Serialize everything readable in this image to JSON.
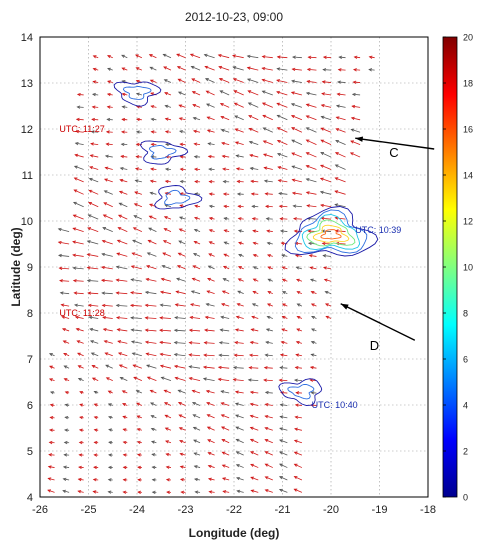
{
  "chart_data": {
    "type": "vector-field",
    "title": "2012-10-23, 09:00",
    "xlabel": "Longitude (deg)",
    "ylabel": "Latitude (deg)",
    "xlim": [
      -26,
      -18
    ],
    "ylim": [
      4,
      14
    ],
    "x_ticks": [
      "-26",
      "-25",
      "-24",
      "-23",
      "-22",
      "-21",
      "-20",
      "-19",
      "-18"
    ],
    "y_ticks": [
      "4",
      "5",
      "6",
      "7",
      "8",
      "9",
      "10",
      "11",
      "12",
      "13",
      "14"
    ],
    "grid": true,
    "colorbar": {
      "range": [
        0,
        20
      ],
      "ticks": [
        "0",
        "2",
        "4",
        "6",
        "8",
        "10",
        "12",
        "14",
        "16",
        "18",
        "20"
      ],
      "colormap": "jet"
    },
    "swath_corners": [
      [
        -25.0,
        13.8
      ],
      [
        -19.0,
        13.7
      ],
      [
        -20.6,
        4.0
      ],
      [
        -26.0,
        4.3
      ]
    ],
    "annotations": [
      {
        "text": "UTC: 11:27",
        "lon": -25.6,
        "lat": 12.0,
        "color": "#cc0000"
      },
      {
        "text": "UTC: 11:28",
        "lon": -25.6,
        "lat": 8.0,
        "color": "#cc0000"
      },
      {
        "text": "UTC: 10:39",
        "lon": -19.5,
        "lat": 9.8,
        "color": "#1a2fb0"
      },
      {
        "text": "UTC: 10:40",
        "lon": -20.4,
        "lat": 6.0,
        "color": "#1a2fb0"
      }
    ],
    "arrow_labels": [
      {
        "text": "C",
        "lon": -18.8,
        "lat": 11.5,
        "tip_lon": -19.5,
        "tip_lat": 11.8
      },
      {
        "text": "D",
        "lon": -19.2,
        "lat": 7.3,
        "tip_lon": -19.8,
        "tip_lat": 8.2
      }
    ],
    "precip_clusters": [
      {
        "lon": -20.0,
        "lat": 9.7,
        "peak": 16
      },
      {
        "lon": -23.2,
        "lat": 10.5,
        "peak": 3
      },
      {
        "lon": -23.5,
        "lat": 11.5,
        "peak": 4
      },
      {
        "lon": -24.0,
        "lat": 12.8,
        "peak": 3
      },
      {
        "lon": -20.6,
        "lat": 6.3,
        "peak": 3
      }
    ]
  }
}
